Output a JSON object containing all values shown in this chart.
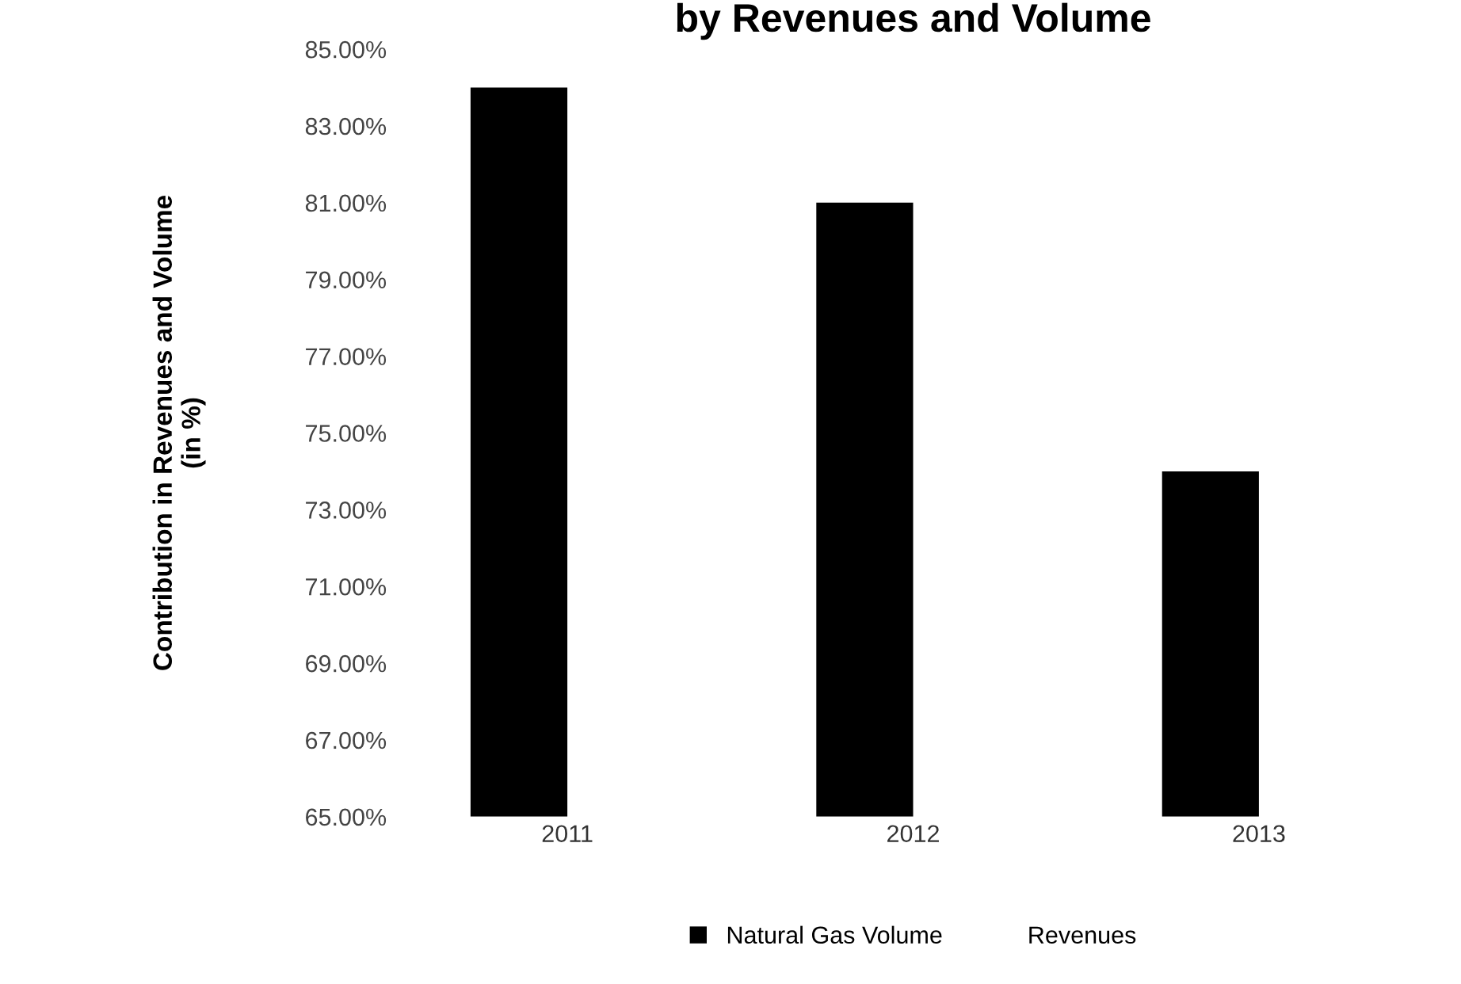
{
  "chart_data": {
    "type": "bar",
    "title": "by Revenues and Volume",
    "ylabel": "Contribution in Revenues and Volume\n(in %)",
    "categories": [
      "2011",
      "2012",
      "2013"
    ],
    "series": [
      {
        "name": "Natural Gas Volume",
        "color": "#000000",
        "values": [
          84.0,
          81.0,
          74.0
        ]
      },
      {
        "name": "Revenues",
        "values": [
          null,
          null,
          null
        ]
      }
    ],
    "ylim": [
      65,
      85
    ],
    "yticks": [
      {
        "value": 65,
        "label": "65.00%"
      },
      {
        "value": 67,
        "label": "67.00%"
      },
      {
        "value": 69,
        "label": "69.00%"
      },
      {
        "value": 71,
        "label": "71.00%"
      },
      {
        "value": 73,
        "label": "73.00%"
      },
      {
        "value": 75,
        "label": "75.00%"
      },
      {
        "value": 77,
        "label": "77.00%"
      },
      {
        "value": 79,
        "label": "79.00%"
      },
      {
        "value": 81,
        "label": "81.00%"
      },
      {
        "value": 83,
        "label": "83.00%"
      },
      {
        "value": 85,
        "label": "85.00%"
      }
    ],
    "grid": false,
    "legend": "bottom"
  }
}
